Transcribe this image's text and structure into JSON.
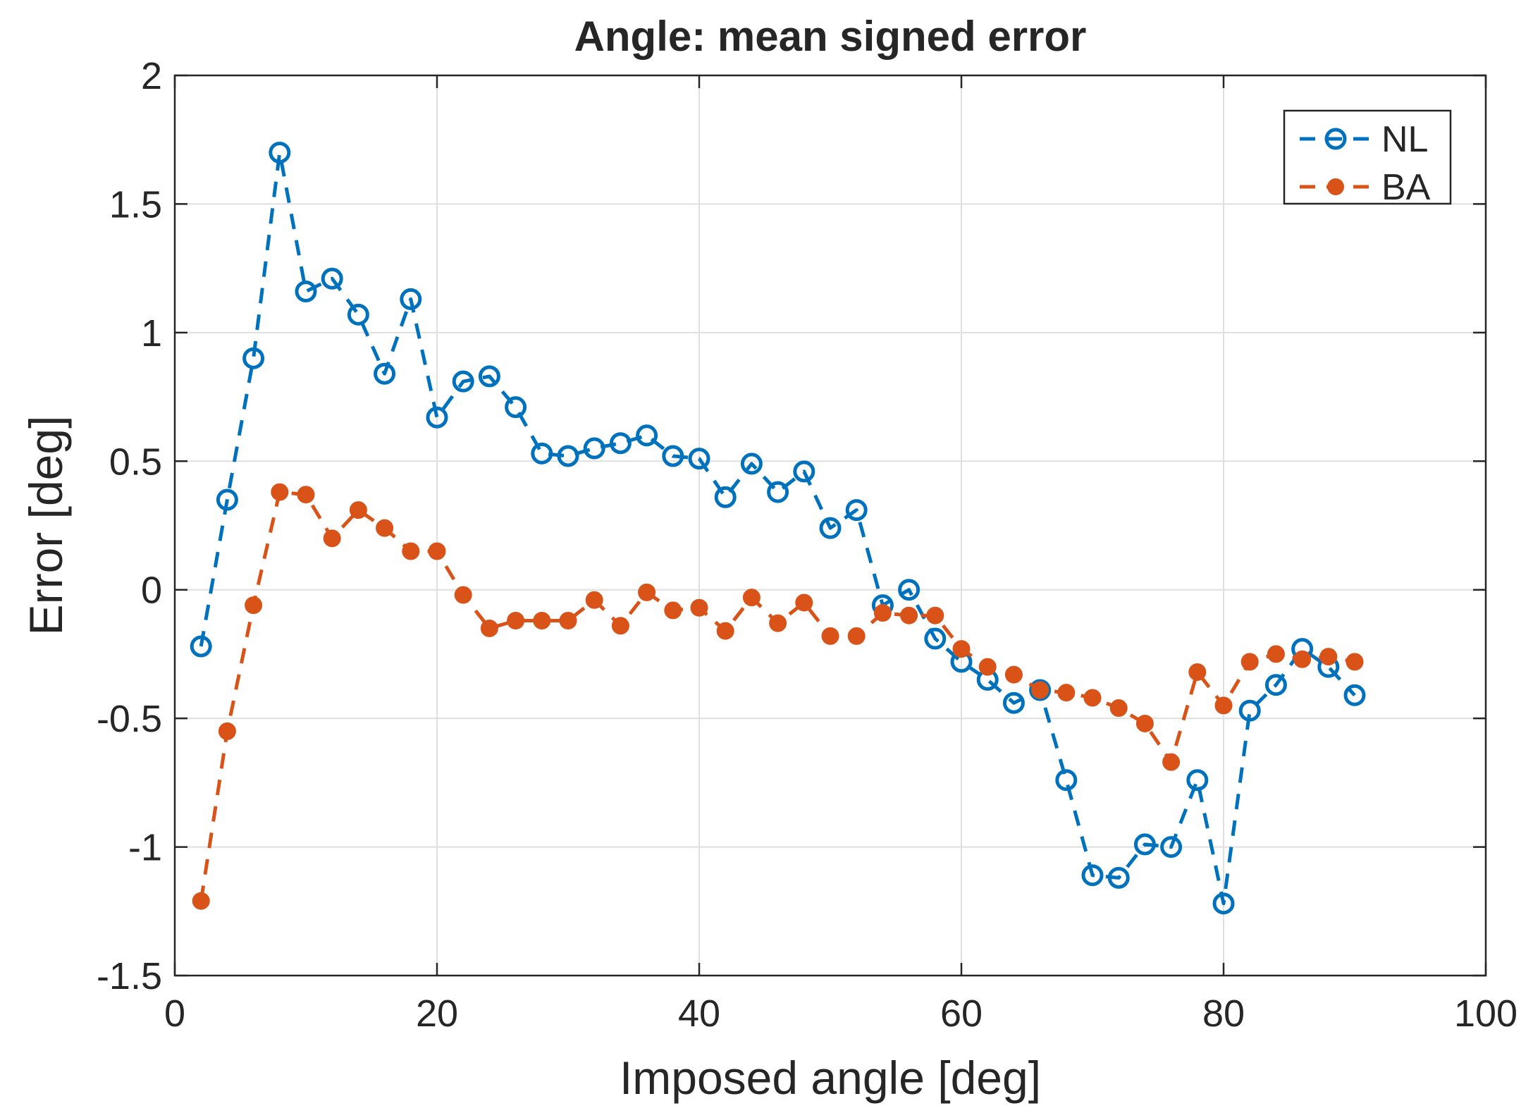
{
  "chart_data": {
    "type": "line",
    "title": "Angle: mean signed error",
    "xlabel": "Imposed angle [deg]",
    "ylabel": "Error [deg]",
    "xlim": [
      0,
      100
    ],
    "ylim": [
      -1.5,
      2
    ],
    "xticks": [
      0,
      20,
      40,
      60,
      80,
      100
    ],
    "yticks": [
      -1.5,
      -1,
      -0.5,
      0,
      0.5,
      1,
      1.5,
      2
    ],
    "xtick_labels": [
      "0",
      "20",
      "40",
      "60",
      "80",
      "100"
    ],
    "ytick_labels": [
      "-1.5",
      "-1",
      "-0.5",
      "0",
      "0.5",
      "1",
      "1.5",
      "2"
    ],
    "grid": true,
    "legend_position": "top-right",
    "x": [
      2,
      4,
      6,
      8,
      10,
      12,
      14,
      16,
      18,
      20,
      22,
      24,
      26,
      28,
      30,
      32,
      34,
      36,
      38,
      40,
      42,
      44,
      46,
      48,
      50,
      52,
      54,
      56,
      58,
      60,
      62,
      64,
      66,
      68,
      70,
      72,
      74,
      76,
      78,
      80,
      82,
      84,
      86,
      88,
      90
    ],
    "series": [
      {
        "name": "NL",
        "color": "#0072BD",
        "marker": "open-circle",
        "line_style": "dashed",
        "values": [
          -0.22,
          0.35,
          0.9,
          1.7,
          1.16,
          1.21,
          1.07,
          0.84,
          1.13,
          0.67,
          0.81,
          0.83,
          0.71,
          0.53,
          0.52,
          0.55,
          0.57,
          0.6,
          0.52,
          0.51,
          0.36,
          0.49,
          0.38,
          0.46,
          0.24,
          0.31,
          -0.06,
          0.0,
          -0.19,
          -0.28,
          -0.35,
          -0.44,
          -0.39,
          -0.74,
          -1.11,
          -1.12,
          -0.99,
          -1.0,
          -0.74,
          -1.22,
          -0.47,
          -0.37,
          -0.23,
          -0.3,
          -0.41
        ]
      },
      {
        "name": "BA",
        "color": "#D95319",
        "marker": "filled-circle",
        "line_style": "dashed",
        "values": [
          -1.21,
          -0.55,
          -0.06,
          0.38,
          0.37,
          0.2,
          0.31,
          0.24,
          0.15,
          0.15,
          -0.02,
          -0.15,
          -0.12,
          -0.12,
          -0.12,
          -0.04,
          -0.14,
          -0.01,
          -0.08,
          -0.07,
          -0.16,
          -0.03,
          -0.13,
          -0.05,
          -0.18,
          -0.18,
          -0.09,
          -0.1,
          -0.1,
          -0.23,
          -0.3,
          -0.33,
          -0.39,
          -0.4,
          -0.42,
          -0.46,
          -0.52,
          -0.67,
          -0.32,
          -0.45,
          -0.28,
          -0.25,
          -0.27,
          -0.26,
          -0.28
        ]
      }
    ]
  }
}
